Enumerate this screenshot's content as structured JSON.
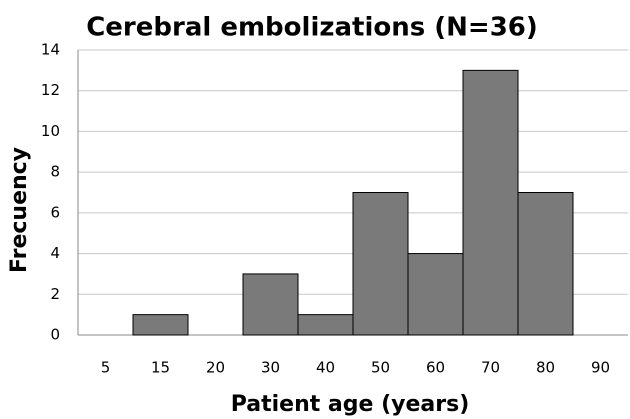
{
  "chart_data": {
    "type": "bar",
    "title": "Cerebral embolizations (N=36)",
    "x_label": "Patient age (years)",
    "y_label": "Frecuency",
    "categories": [
      "5",
      "15",
      "20",
      "30",
      "40",
      "50",
      "60",
      "70",
      "80",
      "90"
    ],
    "values": [
      0,
      1,
      0,
      3,
      1,
      7,
      4,
      13,
      7,
      0
    ],
    "color": "#7a7a7a",
    "ylim": [
      0,
      14
    ],
    "yticks": [
      0,
      2,
      4,
      6,
      8,
      10,
      12,
      14
    ],
    "grid": true
  }
}
